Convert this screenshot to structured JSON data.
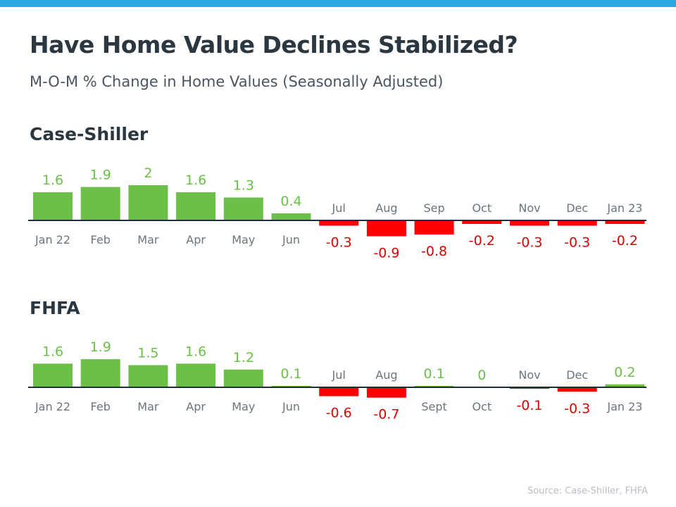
{
  "header": {
    "title": "Have Home Value Declines Stabilized?",
    "subtitle": "M-O-M % Change in Home Values (Seasonally Adjusted)"
  },
  "colors": {
    "positive": "#6cc04a",
    "negative": "#ff0000",
    "negative_label": "#e00000",
    "baseline": "#1f2d36",
    "top_bar": "#2aa8e0"
  },
  "chart_data": [
    {
      "type": "bar",
      "title": "Case-Shiller",
      "categories": [
        "Jan 22",
        "Feb",
        "Mar",
        "Apr",
        "May",
        "Jun",
        "Jul",
        "Aug",
        "Sep",
        "Oct",
        "Nov",
        "Dec",
        "Jan 23"
      ],
      "values": [
        1.6,
        1.9,
        2,
        1.6,
        1.3,
        0.4,
        -0.3,
        -0.9,
        -0.8,
        -0.2,
        -0.3,
        -0.3,
        -0.2
      ],
      "xlabel": "",
      "ylabel": "",
      "grid": false
    },
    {
      "type": "bar",
      "title": "FHFA",
      "categories": [
        "Jan 22",
        "Feb",
        "Mar",
        "Apr",
        "May",
        "Jun",
        "Jul",
        "Aug",
        "Sept",
        "Oct",
        "Nov",
        "Dec",
        "Jan 23"
      ],
      "values": [
        1.6,
        1.9,
        1.5,
        1.6,
        1.2,
        0.1,
        -0.6,
        -0.7,
        0.1,
        0,
        -0.1,
        -0.3,
        0.2
      ],
      "xlabel": "",
      "ylabel": "",
      "grid": false
    }
  ],
  "source": "Source: Case-Shiller, FHFA"
}
